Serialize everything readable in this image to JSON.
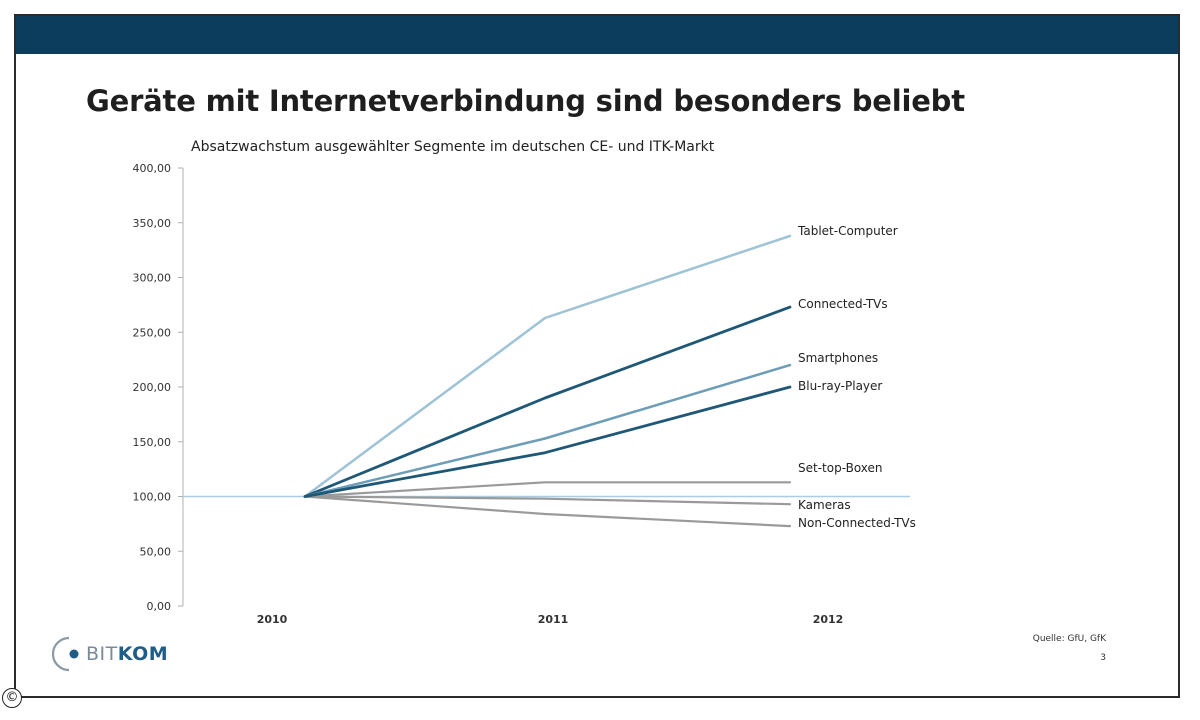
{
  "slide": {
    "title": "Geräte mit Internetverbindung sind besonders beliebt",
    "source": "Quelle: GfU, GfK",
    "page_number": "3",
    "logo_light": "BIT",
    "logo_bold": "KOM",
    "copyright_symbol": "©"
  },
  "colors": {
    "header_bar": "#0c3d5c",
    "light_blue": "#9fc3d6",
    "dark_blue": "#1f5877",
    "mid_blue": "#6d9db7",
    "gray": "#9a9a9a",
    "baseline": "#a9cde3"
  },
  "chart_data": {
    "type": "line",
    "title": "Absatzwachstum ausgewählter Segmente im deutschen CE- und ITK-Markt",
    "xlabel": "",
    "ylabel": "",
    "categories": [
      "2010",
      "2011",
      "2012"
    ],
    "ylim": [
      0,
      400
    ],
    "yticks": [
      "0,00",
      "50,00",
      "100,00",
      "150,00",
      "200,00",
      "250,00",
      "300,00",
      "350,00",
      "400,00"
    ],
    "grid": false,
    "legend": "direct labels at line ends",
    "series": [
      {
        "name": "Tablet-Computer",
        "values": [
          100,
          263,
          338
        ],
        "color": "#9fc3d6",
        "width": 2.5
      },
      {
        "name": "Connected-TVs",
        "values": [
          100,
          190,
          273
        ],
        "color": "#1f5877",
        "width": 2.8
      },
      {
        "name": "Smartphones",
        "values": [
          100,
          153,
          220
        ],
        "color": "#6d9db7",
        "width": 2.5
      },
      {
        "name": "Blu-ray-Player",
        "values": [
          100,
          140,
          200
        ],
        "color": "#1f5877",
        "width": 2.8
      },
      {
        "name": "Set-top-Boxen",
        "values": [
          100,
          113,
          113
        ],
        "color": "#9a9a9a",
        "width": 2.2
      },
      {
        "name": "Kameras",
        "values": [
          100,
          98,
          93
        ],
        "color": "#9a9a9a",
        "width": 2.2
      },
      {
        "name": "Non-Connected-TVs",
        "values": [
          100,
          84,
          73
        ],
        "color": "#9a9a9a",
        "width": 2.2
      }
    ],
    "reference_line": {
      "value": 100,
      "color": "#a9cde3"
    }
  }
}
